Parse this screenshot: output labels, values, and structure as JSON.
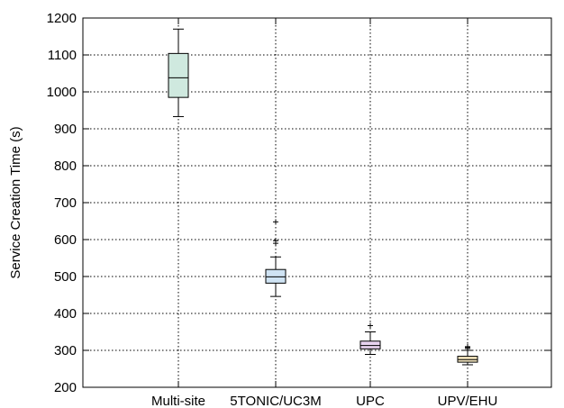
{
  "chart_data": {
    "type": "box",
    "title": "",
    "xlabel": "",
    "ylabel": "Service Creation Time (s)",
    "ylim": [
      200,
      1200
    ],
    "yticks": [
      200,
      300,
      400,
      500,
      600,
      700,
      800,
      900,
      1000,
      1100,
      1200
    ],
    "grid": true,
    "categories": [
      "Multi-site",
      "5TONIC/UC3M",
      "UPC",
      "UPV/EHU"
    ],
    "boxes": [
      {
        "category": "Multi-site",
        "whisker_low": 933,
        "q1": 985,
        "median": 1038,
        "q3": 1104,
        "whisker_high": 1170,
        "outliers": [],
        "color": "#cfe9df"
      },
      {
        "category": "5TONIC/UC3M",
        "whisker_low": 446,
        "q1": 482,
        "median": 499,
        "q3": 519,
        "whisker_high": 553,
        "outliers": [
          590,
          597,
          648
        ],
        "color": "#cfe3f3"
      },
      {
        "category": "UPC",
        "whisker_low": 289,
        "q1": 304,
        "median": 313,
        "q3": 325,
        "whisker_high": 350,
        "outliers": [
          367
        ],
        "color": "#e8d3ef"
      },
      {
        "category": "UPV/EHU",
        "whisker_low": 261,
        "q1": 268,
        "median": 275,
        "q3": 284,
        "whisker_high": 300,
        "outliers": [
          305,
          308,
          310
        ],
        "color": "#f3e4bd"
      }
    ]
  }
}
